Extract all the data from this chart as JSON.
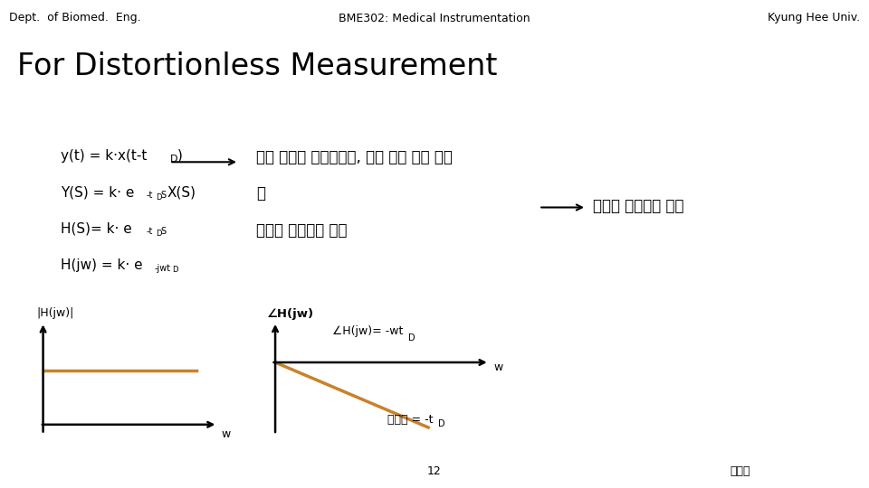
{
  "header_left": "Dept.  of Biomed.  Eng.",
  "header_center": "BME302: Medical Instrumentation",
  "header_right": "Kyung Hee Univ.",
  "title": "For Distortionless Measurement",
  "korean1": "같은 크기로 증가시키고, 같은 위상 차를 주어",
  "korean2": "야",
  "korean3": "왜곡이 발생하지 않음",
  "label_H_abs": "|H(jw)|",
  "label_H_angle": "∠H(jw)",
  "label_w1": "w",
  "label_w2": "w",
  "label_angle_eq": "∠H(jw)= -wt",
  "label_angle_sub": "D",
  "label_slope": "기울기 = -t",
  "label_slope_sub": "D",
  "arrow_label": "왜곡이 발생하지 않음",
  "footer_page": "12",
  "footer_right": "원지혁",
  "bg_color": "#ffffff",
  "text_color": "#000000",
  "orange_color": "#c8822a",
  "line_color": "#000000",
  "title_fontsize": 24,
  "header_fontsize": 9,
  "eq_fontsize": 11,
  "korean_fontsize": 12,
  "label_fontsize": 10,
  "footer_fontsize": 9
}
